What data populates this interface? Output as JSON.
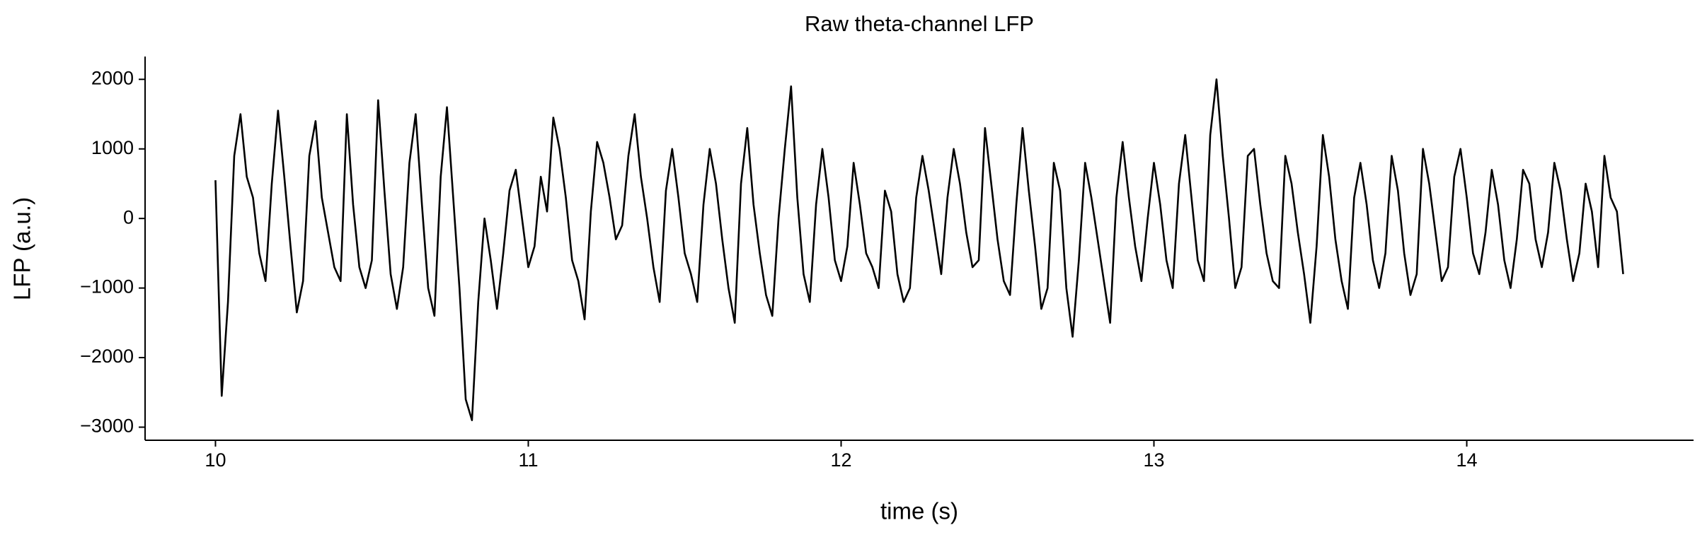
{
  "chart_data": {
    "type": "line",
    "title": "Raw theta-channel LFP",
    "xlabel": "time (s)",
    "ylabel": "LFP (a.u.)",
    "color": "#000000",
    "xlim": [
      9.775,
      14.725
    ],
    "xticks": [
      10,
      11,
      12,
      13,
      14
    ],
    "ylim": [
      -3188,
      2328
    ],
    "yticks": [
      {
        "value": -3000,
        "label": "−3000"
      },
      {
        "value": -2000,
        "label": "−2000"
      },
      {
        "value": -1000,
        "label": "−1000"
      },
      0,
      1000,
      2000
    ],
    "x": [
      10,
      10.02,
      10.04,
      10.06,
      10.08,
      10.1,
      10.12,
      10.14,
      10.16,
      10.18,
      10.2,
      10.22,
      10.24,
      10.26,
      10.28,
      10.3,
      10.32,
      10.34,
      10.36,
      10.38,
      10.4,
      10.42,
      10.44,
      10.46,
      10.48,
      10.5,
      10.52,
      10.54,
      10.56,
      10.58,
      10.6,
      10.62,
      10.64,
      10.66,
      10.68,
      10.7,
      10.72,
      10.74,
      10.76,
      10.78,
      10.8,
      10.82,
      10.84,
      10.86,
      10.88,
      10.9,
      10.92,
      10.94,
      10.96,
      10.98,
      11,
      11.02,
      11.04,
      11.06,
      11.08,
      11.1,
      11.12,
      11.14,
      11.16,
      11.18,
      11.2,
      11.22,
      11.24,
      11.26,
      11.28,
      11.3,
      11.32,
      11.34,
      11.36,
      11.38,
      11.4,
      11.42,
      11.44,
      11.46,
      11.48,
      11.5,
      11.52,
      11.54,
      11.56,
      11.58,
      11.6,
      11.62,
      11.64,
      11.66,
      11.68,
      11.7,
      11.72,
      11.74,
      11.76,
      11.78,
      11.8,
      11.82,
      11.84,
      11.86,
      11.88,
      11.9,
      11.92,
      11.94,
      11.96,
      11.98,
      12,
      12.02,
      12.04,
      12.06,
      12.08,
      12.1,
      12.12,
      12.14,
      12.16,
      12.18,
      12.2,
      12.22,
      12.24,
      12.26,
      12.28,
      12.3,
      12.32,
      12.34,
      12.36,
      12.38,
      12.4,
      12.42,
      12.44,
      12.46,
      12.48,
      12.5,
      12.52,
      12.54,
      12.56,
      12.58,
      12.6,
      12.62,
      12.64,
      12.66,
      12.68,
      12.7,
      12.72,
      12.74,
      12.76,
      12.78,
      12.8,
      12.82,
      12.84,
      12.86,
      12.88,
      12.9,
      12.92,
      12.94,
      12.96,
      12.98,
      13,
      13.02,
      13.04,
      13.06,
      13.08,
      13.1,
      13.12,
      13.14,
      13.16,
      13.18,
      13.2,
      13.22,
      13.24,
      13.26,
      13.28,
      13.3,
      13.32,
      13.34,
      13.36,
      13.38,
      13.4,
      13.42,
      13.44,
      13.46,
      13.48,
      13.5,
      13.52,
      13.54,
      13.56,
      13.58,
      13.6,
      13.62,
      13.64,
      13.66,
      13.68,
      13.7,
      13.72,
      13.74,
      13.76,
      13.78,
      13.8,
      13.82,
      13.84,
      13.86,
      13.88,
      13.9,
      13.92,
      13.94,
      13.96,
      13.98,
      14,
      14.02,
      14.04,
      14.06,
      14.08,
      14.1,
      14.12,
      14.14,
      14.16,
      14.18,
      14.2,
      14.22,
      14.24,
      14.26,
      14.28,
      14.3,
      14.32,
      14.34,
      14.36,
      14.38,
      14.4,
      14.42,
      14.44,
      14.46,
      14.48,
      14.5
    ],
    "values": [
      550,
      -2550,
      -1200,
      900,
      1500,
      600,
      300,
      -500,
      -900,
      500,
      1550,
      600,
      -400,
      -1350,
      -900,
      900,
      1400,
      300,
      -200,
      -700,
      -900,
      1500,
      200,
      -700,
      -1000,
      -600,
      1700,
      400,
      -800,
      -1300,
      -700,
      800,
      1500,
      200,
      -1000,
      -1400,
      600,
      1600,
      300,
      -1000,
      -2600,
      -2900,
      -1200,
      0,
      -600,
      -1300,
      -500,
      400,
      700,
      0,
      -700,
      -400,
      600,
      100,
      1450,
      1000,
      300,
      -600,
      -900,
      -1450,
      100,
      1100,
      800,
      300,
      -300,
      -100,
      900,
      1500,
      600,
      0,
      -700,
      -1200,
      400,
      1000,
      300,
      -500,
      -800,
      -1200,
      200,
      1000,
      500,
      -300,
      -1000,
      -1500,
      500,
      1300,
      200,
      -500,
      -1100,
      -1400,
      0,
      1000,
      1900,
      300,
      -800,
      -1200,
      200,
      1000,
      300,
      -600,
      -900,
      -400,
      800,
      200,
      -500,
      -700,
      -1000,
      400,
      100,
      -800,
      -1200,
      -1000,
      300,
      900,
      400,
      -200,
      -800,
      300,
      1000,
      500,
      -200,
      -700,
      -600,
      1300,
      500,
      -300,
      -900,
      -1100,
      200,
      1300,
      400,
      -400,
      -1300,
      -1000,
      800,
      400,
      -1000,
      -1700,
      -600,
      800,
      300,
      -300,
      -900,
      -1500,
      300,
      1100,
      300,
      -400,
      -900,
      0,
      800,
      200,
      -600,
      -1000,
      500,
      1200,
      300,
      -600,
      -900,
      1200,
      2000,
      900,
      0,
      -1000,
      -700,
      900,
      1000,
      200,
      -500,
      -900,
      -1000,
      900,
      500,
      -200,
      -800,
      -1500,
      -400,
      1200,
      600,
      -300,
      -900,
      -1300,
      300,
      800,
      200,
      -600,
      -1000,
      -500,
      900,
      400,
      -500,
      -1100,
      -800,
      1000,
      500,
      -200,
      -900,
      -700,
      600,
      1000,
      300,
      -500,
      -800,
      -200,
      700,
      200,
      -600,
      -1000,
      -300,
      700,
      500,
      -300,
      -700,
      -200,
      800,
      400,
      -300,
      -900,
      -500,
      500,
      100,
      -700,
      900,
      300,
      100,
      -800
    ]
  }
}
